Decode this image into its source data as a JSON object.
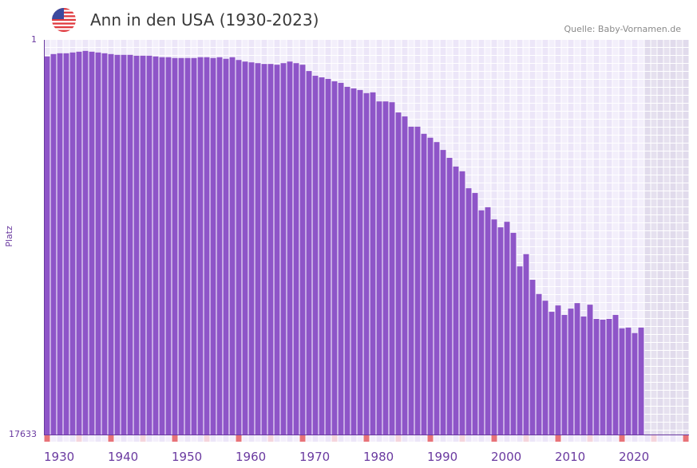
{
  "header": {
    "title": "Ann in den USA (1930-2023)",
    "source": "Quelle: Baby-Vornamen.de",
    "flag": "usa-flag-icon"
  },
  "colors": {
    "bar": "#8e55c8",
    "axis": "#6a3aa0",
    "decade_marker": "#e87378",
    "half_decade_marker": "#f5d5dc",
    "future_zone": "#e4dfee"
  },
  "chart_data": {
    "type": "bar",
    "title": "Ann in den USA (1930-2023)",
    "ylabel": "Platz",
    "y_axis_top_label": "1",
    "y_axis_bottom_label": "17633",
    "y_scale_note": "rank axis, 1 at top; values are bar height as percent of axis",
    "x_range": [
      1930,
      2030
    ],
    "x_ticks": [
      "1930",
      "1940",
      "1950",
      "1960",
      "1970",
      "1980",
      "1990",
      "2000",
      "2010",
      "2020"
    ],
    "x": [
      1930,
      1931,
      1932,
      1933,
      1934,
      1935,
      1936,
      1937,
      1938,
      1939,
      1940,
      1941,
      1942,
      1943,
      1944,
      1945,
      1946,
      1947,
      1948,
      1949,
      1950,
      1951,
      1952,
      1953,
      1954,
      1955,
      1956,
      1957,
      1958,
      1959,
      1960,
      1961,
      1962,
      1963,
      1964,
      1965,
      1966,
      1967,
      1968,
      1969,
      1970,
      1971,
      1972,
      1973,
      1974,
      1975,
      1976,
      1977,
      1978,
      1979,
      1980,
      1981,
      1982,
      1983,
      1984,
      1985,
      1986,
      1987,
      1988,
      1989,
      1990,
      1991,
      1992,
      1993,
      1994,
      1995,
      1996,
      1997,
      1998,
      1999,
      2000,
      2001,
      2002,
      2003,
      2004,
      2005,
      2006,
      2007,
      2008,
      2009,
      2010,
      2011,
      2012,
      2013,
      2014,
      2015,
      2016,
      2017,
      2018,
      2019,
      2020,
      2021,
      2022,
      2023
    ],
    "bar_height_pct": [
      95.8,
      96.4,
      96.6,
      96.6,
      96.8,
      97.0,
      97.2,
      97.0,
      96.8,
      96.6,
      96.4,
      96.2,
      96.2,
      96.2,
      96.0,
      96.0,
      96.0,
      95.8,
      95.6,
      95.6,
      95.4,
      95.4,
      95.4,
      95.4,
      95.6,
      95.6,
      95.4,
      95.6,
      95.2,
      95.6,
      94.9,
      94.5,
      94.3,
      94.1,
      93.9,
      93.9,
      93.7,
      94.1,
      94.5,
      94.1,
      93.7,
      92.1,
      90.9,
      90.5,
      90.1,
      89.5,
      89.1,
      88.1,
      87.7,
      87.3,
      86.5,
      86.7,
      84.4,
      84.4,
      84.2,
      81.6,
      80.6,
      78.0,
      78.0,
      76.2,
      75.2,
      74.1,
      72.1,
      70.1,
      67.9,
      66.7,
      62.4,
      61.2,
      56.8,
      57.6,
      54.5,
      52.5,
      53.9,
      51.1,
      42.6,
      45.7,
      39.2,
      35.6,
      33.9,
      31.1,
      32.7,
      30.3,
      31.9,
      33.3,
      29.9,
      32.9,
      29.3,
      29.1,
      29.3,
      30.3,
      26.9,
      27.1,
      25.7,
      27.1
    ]
  }
}
